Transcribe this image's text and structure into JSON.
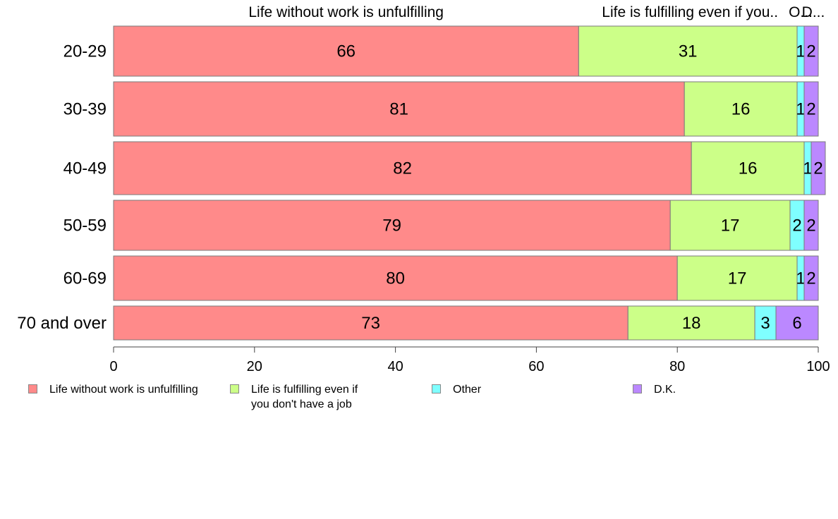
{
  "chart_data": {
    "type": "bar",
    "orientation": "horizontal",
    "stacked": true,
    "categories": [
      "20-29",
      "30-39",
      "40-49",
      "50-59",
      "60-69",
      "70 and over"
    ],
    "series": [
      {
        "name": "Life without work is unfulfilling",
        "values": [
          66,
          81,
          82,
          79,
          80,
          73
        ],
        "color": "#ff8a8a"
      },
      {
        "name": "Life is fulfilling even if you don't have a job",
        "values": [
          31,
          16,
          16,
          17,
          17,
          18
        ],
        "color": "#ccff88"
      },
      {
        "name": "Other",
        "values": [
          1,
          1,
          1,
          2,
          1,
          3
        ],
        "color": "#7fffff"
      },
      {
        "name": "D.K.",
        "values": [
          2,
          2,
          2,
          2,
          2,
          6
        ],
        "color": "#bb88ff"
      }
    ],
    "column_headers": [
      "Life without work is unfulfilling",
      "Life is fulfilling even if you..",
      "O...",
      "D..."
    ],
    "xlim": [
      0,
      100
    ],
    "xticks": [
      0,
      20,
      40,
      60,
      80,
      100
    ],
    "legend_position": "bottom",
    "legend_labels": [
      "Life without work is unfulfilling",
      "Life is fulfilling even if\nyou don't have a job",
      "Other",
      "D.K."
    ],
    "grid": false
  }
}
